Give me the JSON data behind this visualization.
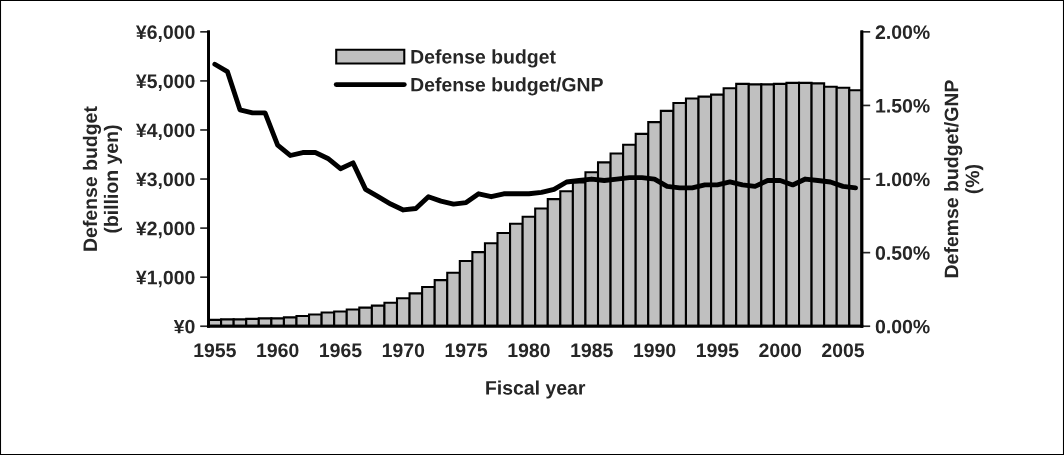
{
  "chart_data": {
    "type": "bar",
    "xlabel": "Fiscal year",
    "ylabel": "Defense budget\n(billion yen)",
    "y2label": "Defemse budget/GNP\n(%)",
    "categories": [
      "1955",
      null,
      null,
      null,
      null,
      "1960",
      null,
      null,
      null,
      null,
      "1965",
      null,
      null,
      null,
      null,
      "1970",
      null,
      null,
      null,
      null,
      "1975",
      null,
      null,
      null,
      null,
      "1980",
      null,
      null,
      null,
      null,
      "1985",
      null,
      null,
      null,
      null,
      "1990",
      null,
      null,
      null,
      null,
      "1995",
      null,
      null,
      null,
      null,
      "2000",
      null,
      null,
      null,
      null,
      "2005",
      null
    ],
    "series": [
      {
        "name": "Defense budget",
        "color": "#c0c0c0",
        "values": [
          130,
          140,
          140,
          150,
          160,
          160,
          180,
          210,
          240,
          280,
          300,
          340,
          380,
          420,
          480,
          570,
          670,
          800,
          940,
          1090,
          1330,
          1510,
          1690,
          1900,
          2090,
          2230,
          2400,
          2590,
          2750,
          2930,
          3140,
          3340,
          3520,
          3700,
          3920,
          4160,
          4390,
          4550,
          4640,
          4680,
          4720,
          4850,
          4940,
          4930,
          4930,
          4940,
          4960,
          4960,
          4950,
          4880,
          4860,
          4810
        ]
      },
      {
        "name": "Defense budget/GNP",
        "type": "line",
        "axis": "y2",
        "color": "#000000",
        "values": [
          1.78,
          1.73,
          1.47,
          1.45,
          1.45,
          1.23,
          1.16,
          1.18,
          1.18,
          1.14,
          1.07,
          1.11,
          0.93,
          0.88,
          0.83,
          0.79,
          0.8,
          0.88,
          0.85,
          0.83,
          0.84,
          0.9,
          0.88,
          0.9,
          0.9,
          0.9,
          0.91,
          0.93,
          0.98,
          0.99,
          1.0,
          0.99,
          1.0,
          1.01,
          1.01,
          1.0,
          0.95,
          0.94,
          0.94,
          0.96,
          0.96,
          0.98,
          0.96,
          0.95,
          0.99,
          0.99,
          0.96,
          1.0,
          0.99,
          0.98,
          0.95,
          0.94
        ]
      }
    ],
    "ylim": [
      0,
      6000
    ],
    "yticks": [
      {
        "value": 0,
        "label": "¥0"
      },
      {
        "value": 1000,
        "label": "¥1,000"
      },
      {
        "value": 2000,
        "label": "¥2,000"
      },
      {
        "value": 3000,
        "label": "¥3,000"
      },
      {
        "value": 4000,
        "label": "¥4,000"
      },
      {
        "value": 5000,
        "label": "¥5,000"
      },
      {
        "value": 6000,
        "label": "¥6,000"
      }
    ],
    "y2lim": [
      0,
      2
    ],
    "y2ticks": [
      {
        "value": 0,
        "label": "0.00%"
      },
      {
        "value": 0.5,
        "label": "0.50%"
      },
      {
        "value": 1,
        "label": "1.00%"
      },
      {
        "value": 1.5,
        "label": "1.50%"
      },
      {
        "value": 2,
        "label": "2.00%"
      }
    ],
    "grid": false,
    "legend": "top",
    "line_style": "solid",
    "marker": "none"
  }
}
